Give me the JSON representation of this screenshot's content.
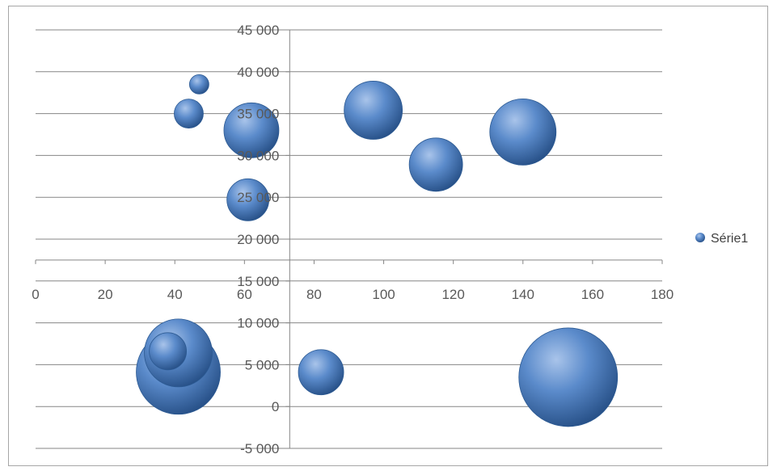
{
  "chart_data": {
    "type": "bubble",
    "title": "",
    "xlabel": "",
    "ylabel": "",
    "xlim": [
      0,
      180
    ],
    "ylim": [
      -5000,
      45000
    ],
    "x_ticks": [
      0,
      20,
      40,
      60,
      80,
      100,
      120,
      140,
      160,
      180
    ],
    "y_ticks": [
      -5000,
      0,
      5000,
      10000,
      15000,
      20000,
      25000,
      30000,
      35000,
      40000,
      45000
    ],
    "x_tick_labels": [
      "0",
      "20",
      "40",
      "60",
      "80",
      "100",
      "120",
      "140",
      "160",
      "180"
    ],
    "y_tick_labels": [
      "-5 000",
      "0",
      "5 000",
      "10 000",
      "15 000",
      "20 000",
      "25 000",
      "30 000",
      "35 000",
      "40 000",
      "45 000"
    ],
    "x_axis_crosses_y": 17500,
    "y_axis_crosses_x": 73,
    "grid": "horizontal",
    "legend_position": "right",
    "series": [
      {
        "name": "Série1",
        "color": "#4f81bd",
        "points": [
          {
            "x": 47,
            "y": 38500,
            "size": 12
          },
          {
            "x": 44,
            "y": 35000,
            "size": 18
          },
          {
            "x": 62,
            "y": 33000,
            "size": 34
          },
          {
            "x": 61,
            "y": 24700,
            "size": 26
          },
          {
            "x": 97,
            "y": 35400,
            "size": 36
          },
          {
            "x": 115,
            "y": 28900,
            "size": 33
          },
          {
            "x": 140,
            "y": 32800,
            "size": 41
          },
          {
            "x": 41,
            "y": 4100,
            "size": 52
          },
          {
            "x": 41,
            "y": 6400,
            "size": 42
          },
          {
            "x": 38,
            "y": 6600,
            "size": 23
          },
          {
            "x": 82,
            "y": 4100,
            "size": 28
          },
          {
            "x": 153,
            "y": 3500,
            "size": 61
          }
        ]
      }
    ]
  }
}
